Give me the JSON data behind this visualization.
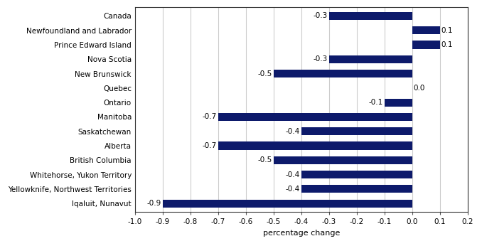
{
  "categories": [
    "Iqaluit, Nunavut",
    "Yellowknife, Northwest Territories",
    "Whitehorse, Yukon Territory",
    "British Columbia",
    "Alberta",
    "Saskatchewan",
    "Manitoba",
    "Ontario",
    "Quebec",
    "New Brunswick",
    "Nova Scotia",
    "Prince Edward Island",
    "Newfoundland and Labrador",
    "Canada"
  ],
  "values": [
    -0.9,
    -0.4,
    -0.4,
    -0.5,
    -0.7,
    -0.4,
    -0.7,
    -0.1,
    0.0,
    -0.5,
    -0.3,
    0.1,
    0.1,
    -0.3
  ],
  "bar_color": "#0d1a6b",
  "xlabel": "percentage change",
  "xlim": [
    -1.0,
    0.2
  ],
  "xticks": [
    -1.0,
    -0.9,
    -0.8,
    -0.7,
    -0.6,
    -0.5,
    -0.4,
    -0.3,
    -0.2,
    -0.1,
    0.0,
    0.1,
    0.2
  ],
  "background_color": "#ffffff",
  "grid_color": "#cccccc",
  "label_fontsize": 7.5,
  "xlabel_fontsize": 8,
  "bar_height": 0.55
}
